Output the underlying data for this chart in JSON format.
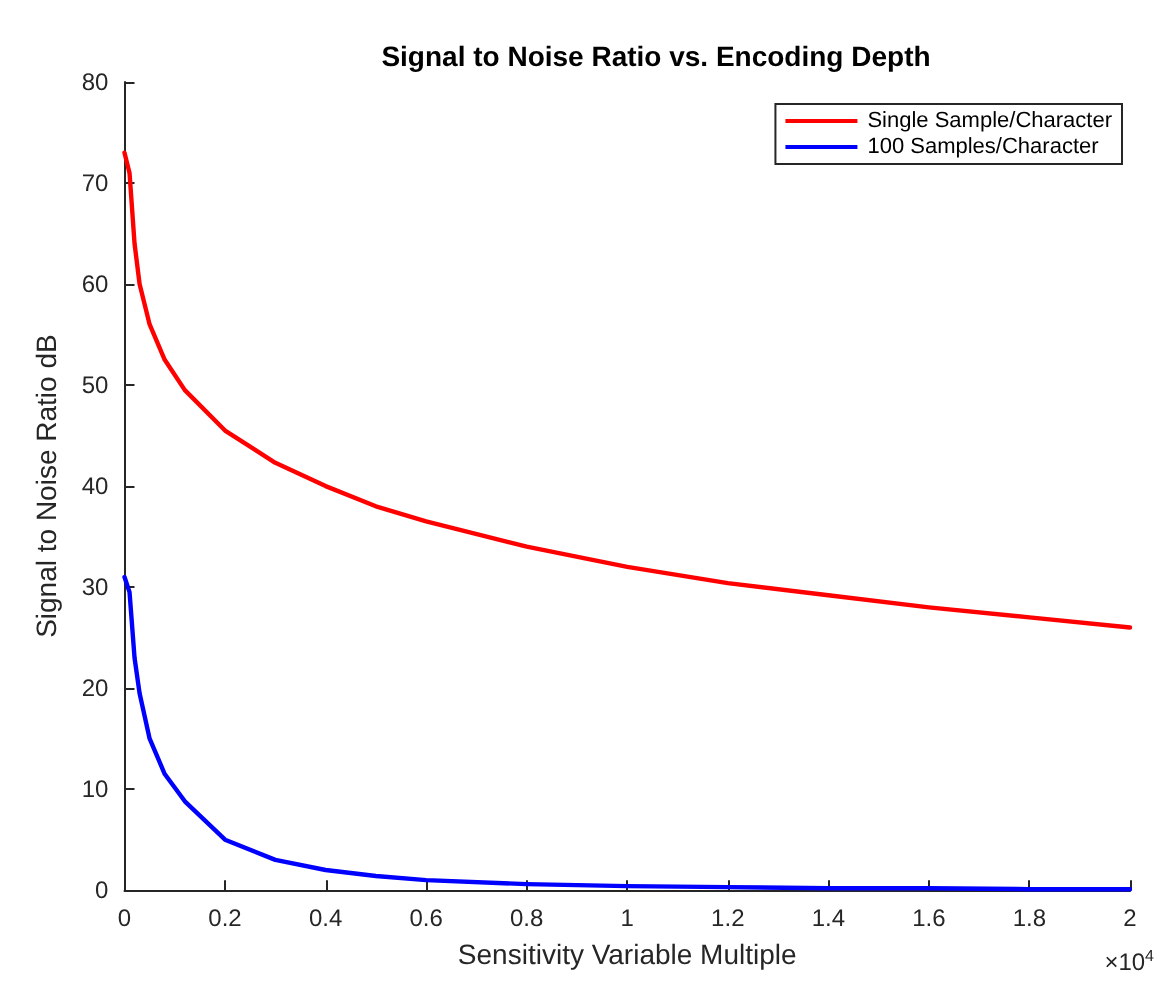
{
  "chart_data": {
    "type": "line",
    "title": "Signal to Noise Ratio vs. Encoding Depth",
    "xlabel": "Sensitivity Variable Multiple",
    "ylabel": "Signal to Noise Ratio dB",
    "annotations": [
      "×10$^{4}$"
    ],
    "x": [
      0,
      0.01,
      0.02,
      0.03,
      0.05,
      0.08,
      0.12,
      0.2,
      0.3,
      0.4,
      0.5,
      0.6,
      0.8,
      1.0,
      1.2,
      1.4,
      1.6,
      1.8,
      2.0
    ],
    "series": [
      {
        "name": "Single Sample/Character",
        "color": "#ff0000",
        "values": [
          73,
          71,
          64,
          60,
          56,
          52.5,
          49.5,
          45.5,
          42.3,
          40,
          38,
          36.5,
          34,
          32,
          30.4,
          29.2,
          28,
          27,
          26
        ]
      },
      {
        "name": "100 Samples/Character",
        "color": "#0000ff",
        "values": [
          31,
          29.5,
          23,
          19.5,
          15,
          11.5,
          8.8,
          5,
          3,
          2,
          1.4,
          1,
          0.6,
          0.4,
          0.3,
          0.2,
          0.2,
          0.1,
          0.1
        ]
      }
    ],
    "xlim": [
      0,
      2
    ],
    "xticks": [
      0,
      0.2,
      0.4,
      0.6,
      0.8,
      1,
      1.2,
      1.4,
      1.6,
      1.8,
      2
    ],
    "ylim": [
      0,
      80
    ],
    "yticks": [
      0,
      10,
      20,
      30,
      40,
      50,
      60,
      70,
      80
    ],
    "grid": false,
    "legend": "top right",
    "marker": "none",
    "line_style": "solid"
  }
}
